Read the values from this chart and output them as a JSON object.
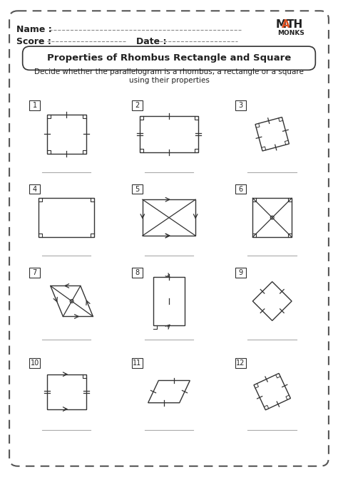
{
  "title": "Properties of Rhombus Rectangle and Square",
  "subtitle": "Decide whether the parallelogram is a rhombus, a rectangle or a square\nusing their properties",
  "name_label": "Name :",
  "score_label": "Score :",
  "date_label": "Date :",
  "bg_color": "#ffffff",
  "border_color": "#555555",
  "text_color": "#222222",
  "grid_rows": 4,
  "grid_cols": 3
}
